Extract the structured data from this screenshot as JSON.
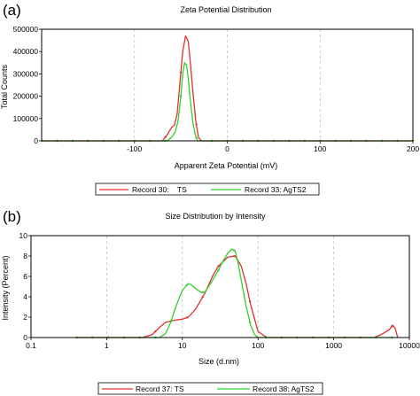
{
  "chart_data": [
    {
      "panel": "(a)",
      "type": "line",
      "title": "Zeta Potential Distribution",
      "xlabel": "Apparent Zeta Potential (mV)",
      "ylabel": "Total Counts",
      "xlim": [
        -200,
        200
      ],
      "ylim": [
        0,
        500000
      ],
      "xticks": [
        -100,
        0,
        100,
        200
      ],
      "xtick_labels": [
        "-100",
        "0",
        "100",
        "200"
      ],
      "yticks": [
        0,
        100000,
        200000,
        300000,
        400000,
        500000
      ],
      "ytick_labels": [
        "0",
        "100000",
        "200000",
        "300000",
        "400000",
        "500000"
      ],
      "grid": "vertical dashed",
      "legend_position": "bottom",
      "series": [
        {
          "name": "Record 30:    TS",
          "color": "#e03030",
          "x": [
            -200,
            -70,
            -65,
            -60,
            -57,
            -54,
            -51,
            -48,
            -45,
            -42,
            -40,
            -37,
            -34,
            -31,
            -28,
            200
          ],
          "y": [
            0,
            0,
            25000,
            60000,
            70000,
            120000,
            260000,
            400000,
            470000,
            445000,
            360000,
            220000,
            90000,
            15000,
            0,
            0
          ]
        },
        {
          "name": "Record 33: AgTS2",
          "color": "#30d030",
          "x": [
            -200,
            -65,
            -60,
            -56,
            -53,
            -50,
            -48,
            -46,
            -44,
            -42,
            -40,
            -37,
            -34,
            -32,
            200
          ],
          "y": [
            0,
            0,
            15000,
            40000,
            90000,
            200000,
            300000,
            350000,
            340000,
            280000,
            190000,
            80000,
            20000,
            0,
            0
          ]
        }
      ]
    },
    {
      "panel": "(b)",
      "type": "line",
      "title": "Size Distribution by Intensity",
      "xlabel": "Size (d.nm)",
      "ylabel": "Intensity (Percent)",
      "xscale": "log",
      "xlim": [
        0.1,
        10000
      ],
      "ylim": [
        0,
        10
      ],
      "xticks": [
        0.1,
        1,
        10,
        100,
        1000,
        10000
      ],
      "xtick_labels": [
        "0.1",
        "1",
        "10",
        "100",
        "1000",
        "10000"
      ],
      "yticks": [
        0,
        2,
        4,
        6,
        8,
        10
      ],
      "ytick_labels": [
        "0",
        "2",
        "4",
        "6",
        "8",
        "10"
      ],
      "grid": "vertical dashed",
      "legend_position": "bottom",
      "series": [
        {
          "name": "Record 37: TS",
          "color": "#e03030",
          "x": [
            0.4,
            3,
            4,
            5,
            6,
            8,
            10,
            12,
            15,
            20,
            25,
            30,
            40,
            50,
            60,
            70,
            80,
            100,
            130,
            3500,
            4500,
            5500,
            6000,
            6500,
            7000
          ],
          "y": [
            0,
            0,
            0.3,
            1.0,
            1.5,
            1.7,
            1.8,
            2.0,
            2.8,
            4.4,
            6.0,
            7.0,
            7.9,
            8.0,
            7.0,
            5.2,
            3.2,
            0.6,
            0,
            0,
            0.4,
            0.8,
            1.2,
            0.9,
            0
          ],
          "fixed": []
        },
        {
          "name": "Record 38: AgTS2",
          "color": "#30d030",
          "x": [
            0.4,
            5,
            6,
            7,
            8,
            9,
            10,
            11,
            12,
            13,
            15,
            18,
            20,
            25,
            30,
            35,
            40,
            45,
            50,
            55,
            60,
            70,
            80,
            90,
            100,
            6000
          ],
          "y": [
            0,
            0,
            0.4,
            1.5,
            2.8,
            3.8,
            4.6,
            5.0,
            5.3,
            5.2,
            4.8,
            4.4,
            4.5,
            5.6,
            6.6,
            7.6,
            8.3,
            8.7,
            8.5,
            7.2,
            5.6,
            3.0,
            1.2,
            0.3,
            0,
            0
          ]
        }
      ]
    }
  ]
}
